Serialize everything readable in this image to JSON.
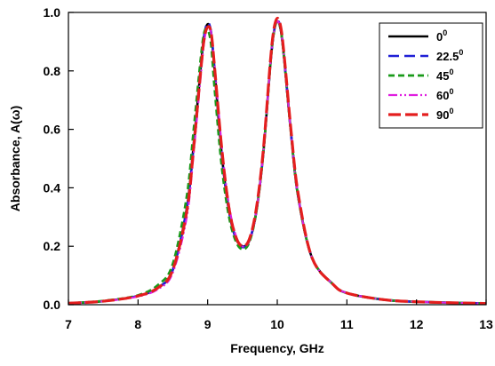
{
  "chart_data": {
    "type": "line",
    "xlabel": "Frequency, GHz",
    "ylabel": "Absorbance, A(ω)",
    "xlim": [
      7,
      13
    ],
    "ylim": [
      0,
      1.0
    ],
    "xticks": [
      7,
      8,
      9,
      10,
      11,
      12,
      13
    ],
    "xtick_labels": [
      "7",
      "8",
      "9",
      "10",
      "11",
      "12",
      "13"
    ],
    "yticks": [
      0,
      0.2,
      0.4,
      0.6,
      0.8,
      1.0
    ],
    "ytick_labels": [
      "0.0",
      "0.2",
      "0.4",
      "0.6",
      "0.8",
      "1.0"
    ],
    "grid": false,
    "legend_position": "top-right",
    "x": [
      7.0,
      7.5,
      8.0,
      8.3,
      8.5,
      8.7,
      8.8,
      8.9,
      8.95,
      9.0,
      9.05,
      9.1,
      9.2,
      9.3,
      9.4,
      9.5,
      9.6,
      9.7,
      9.8,
      9.9,
      9.95,
      10.0,
      10.05,
      10.1,
      10.2,
      10.3,
      10.5,
      10.8,
      11.0,
      11.5,
      12.0,
      13.0
    ],
    "series": [
      {
        "name": "0",
        "sup": "0",
        "color": "#000000",
        "dash": "solid",
        "values": [
          0.005,
          0.012,
          0.03,
          0.06,
          0.12,
          0.33,
          0.55,
          0.81,
          0.92,
          0.96,
          0.93,
          0.8,
          0.52,
          0.33,
          0.23,
          0.2,
          0.22,
          0.32,
          0.52,
          0.82,
          0.93,
          0.97,
          0.94,
          0.84,
          0.58,
          0.37,
          0.16,
          0.07,
          0.04,
          0.018,
          0.01,
          0.004
        ]
      },
      {
        "name": "22.5",
        "sup": "0",
        "color": "#1f1fd6",
        "dash": "long",
        "values": [
          0.005,
          0.012,
          0.03,
          0.06,
          0.12,
          0.33,
          0.55,
          0.81,
          0.92,
          0.965,
          0.93,
          0.8,
          0.52,
          0.33,
          0.23,
          0.197,
          0.22,
          0.32,
          0.52,
          0.82,
          0.93,
          0.975,
          0.94,
          0.84,
          0.58,
          0.37,
          0.16,
          0.07,
          0.04,
          0.018,
          0.01,
          0.004
        ]
      },
      {
        "name": "45",
        "sup": "0",
        "color": "#1a9a1a",
        "dash": "short",
        "values": [
          0.005,
          0.013,
          0.032,
          0.07,
          0.14,
          0.37,
          0.6,
          0.84,
          0.93,
          0.94,
          0.89,
          0.74,
          0.48,
          0.31,
          0.22,
          0.19,
          0.215,
          0.32,
          0.52,
          0.82,
          0.93,
          0.97,
          0.94,
          0.84,
          0.58,
          0.37,
          0.16,
          0.07,
          0.04,
          0.018,
          0.01,
          0.004
        ]
      },
      {
        "name": "60",
        "sup": "0",
        "color": "#e01ee0",
        "dash": "dashdotdot",
        "values": [
          0.005,
          0.012,
          0.028,
          0.055,
          0.11,
          0.3,
          0.52,
          0.78,
          0.9,
          0.95,
          0.93,
          0.82,
          0.55,
          0.35,
          0.24,
          0.2,
          0.22,
          0.32,
          0.52,
          0.82,
          0.93,
          0.97,
          0.94,
          0.84,
          0.58,
          0.37,
          0.16,
          0.07,
          0.04,
          0.018,
          0.01,
          0.004
        ]
      },
      {
        "name": "90",
        "sup": "0",
        "color": "#e41e1e",
        "dash": "longheavy",
        "values": [
          0.005,
          0.012,
          0.03,
          0.06,
          0.12,
          0.32,
          0.54,
          0.8,
          0.91,
          0.95,
          0.93,
          0.81,
          0.54,
          0.34,
          0.235,
          0.2,
          0.225,
          0.33,
          0.53,
          0.83,
          0.94,
          0.98,
          0.95,
          0.85,
          0.59,
          0.38,
          0.16,
          0.07,
          0.04,
          0.018,
          0.01,
          0.004
        ]
      }
    ]
  }
}
